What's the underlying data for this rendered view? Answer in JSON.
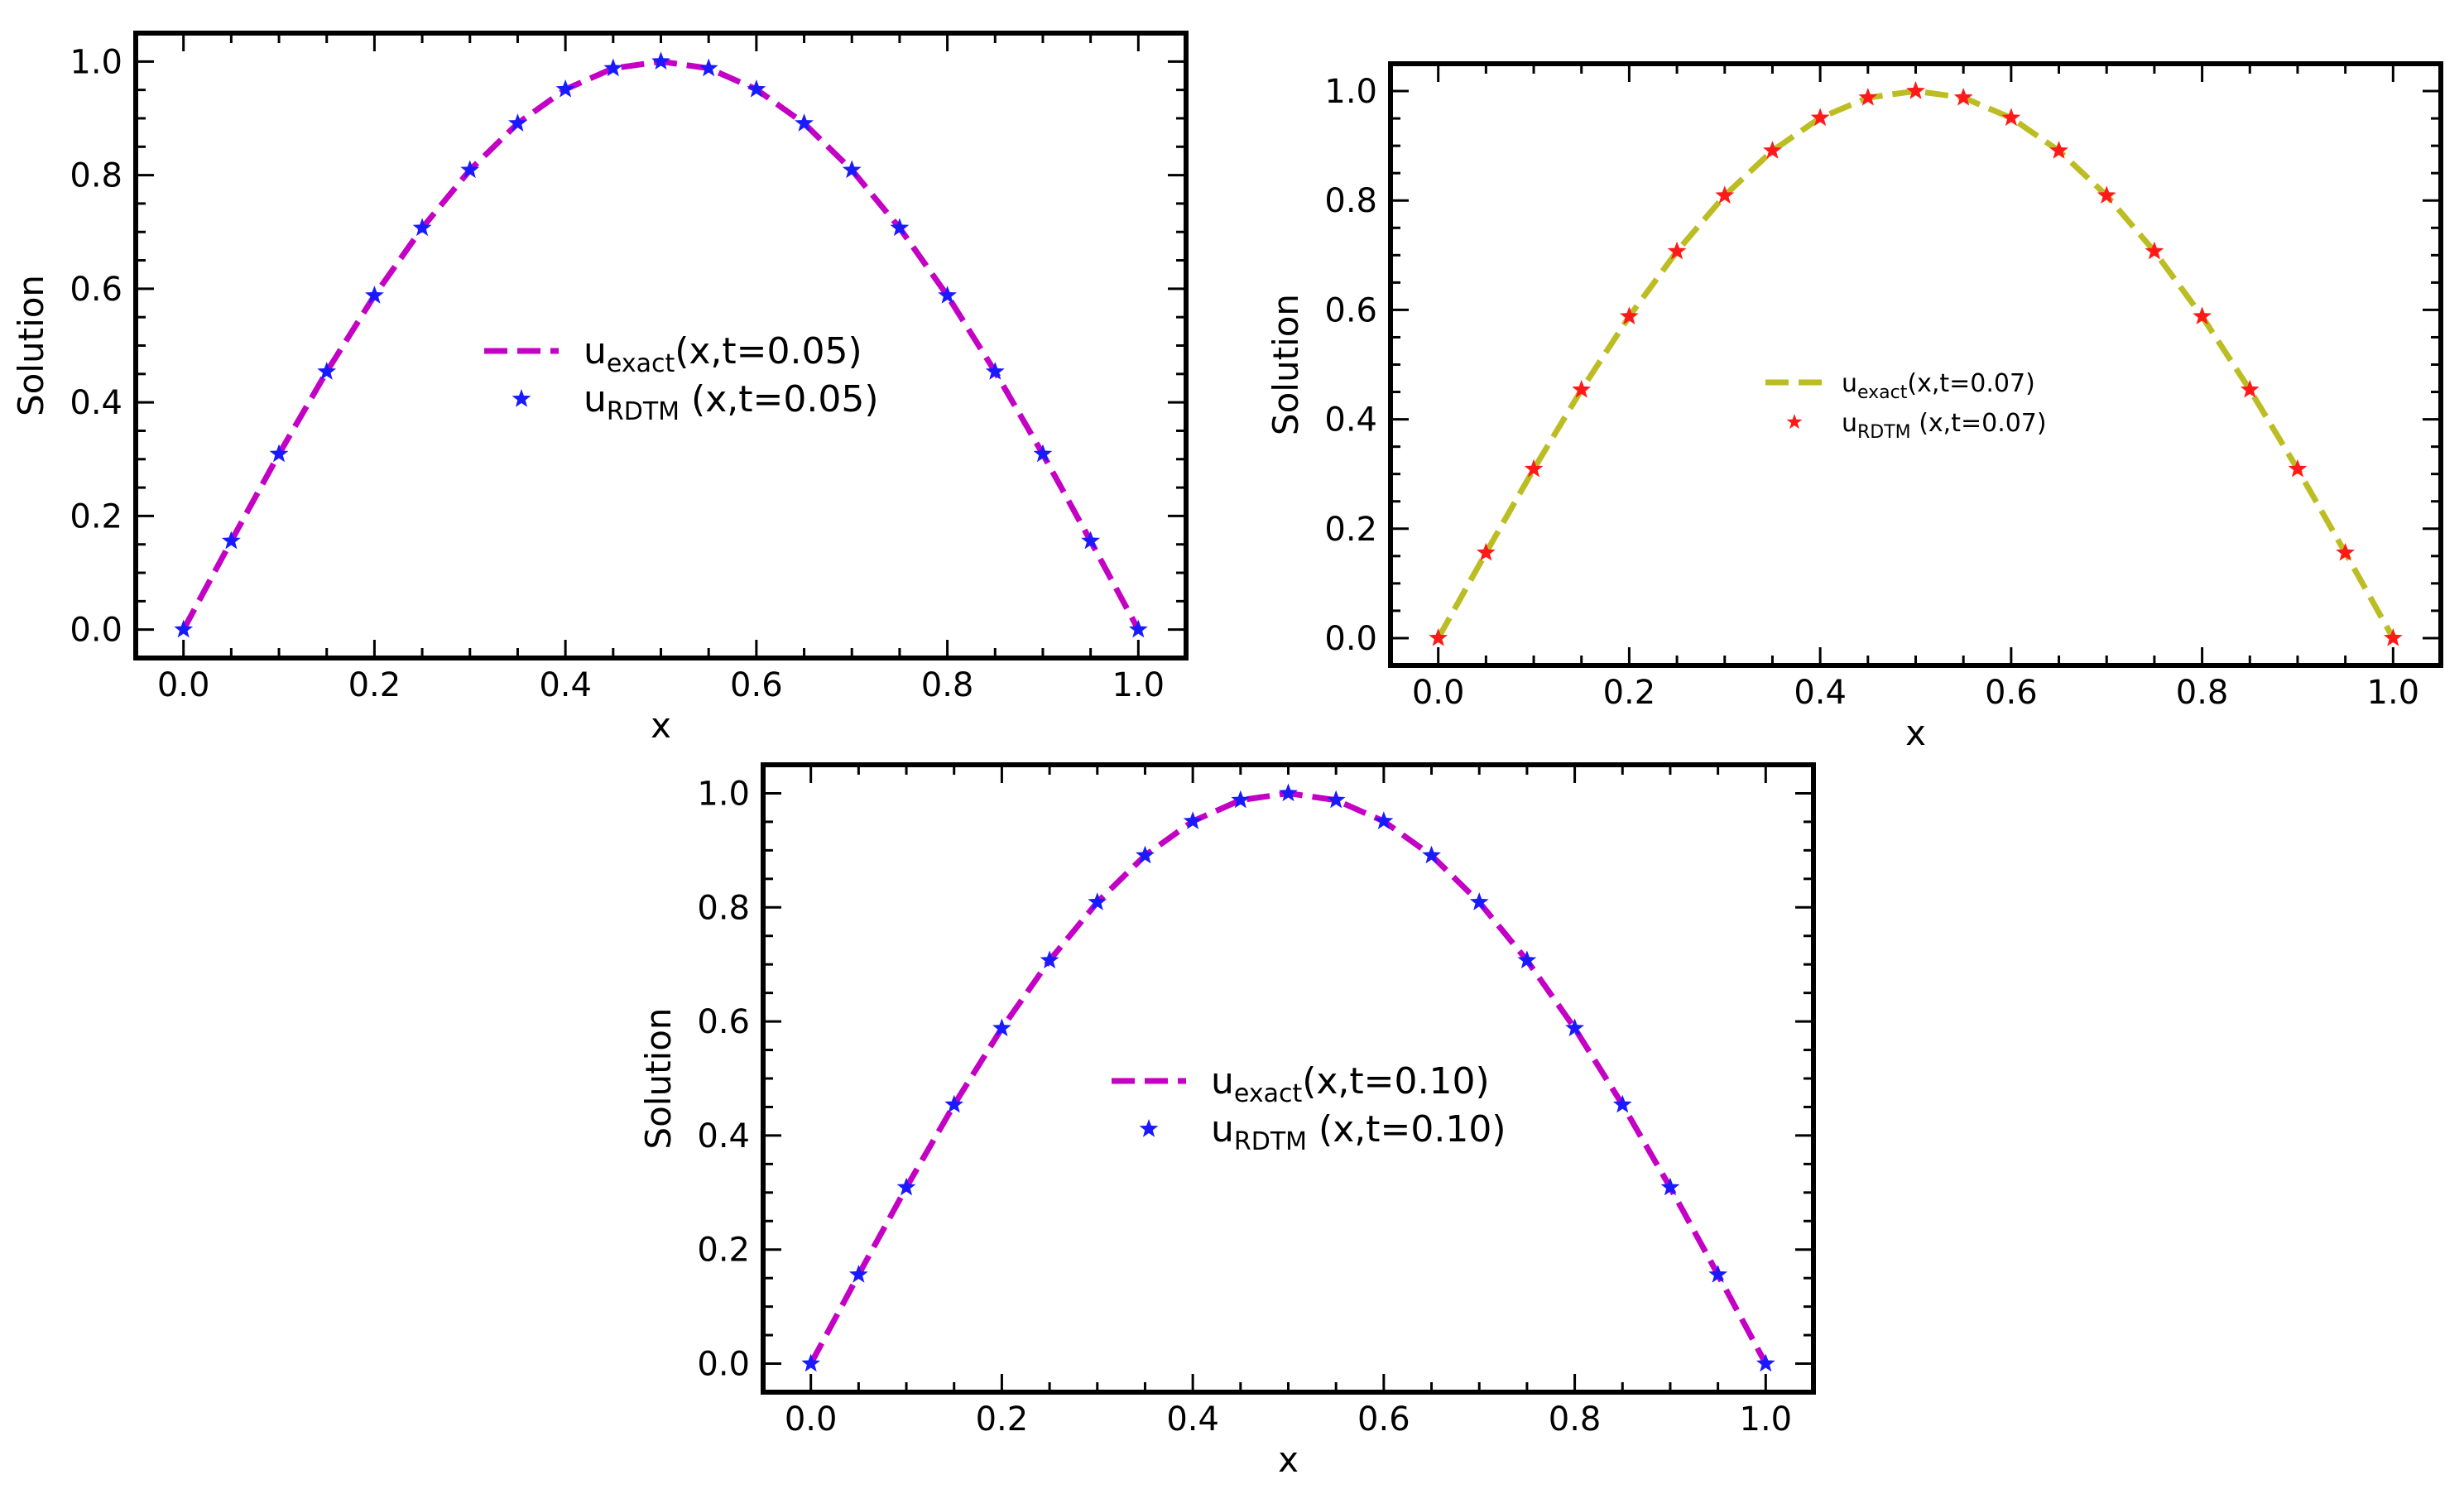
{
  "figure": {
    "background": "#ffffff"
  },
  "chart_data": [
    {
      "type": "line",
      "panel": "top-left",
      "title": "",
      "xlabel": "x",
      "ylabel": "Solution",
      "xlim": [
        -0.05,
        1.05
      ],
      "ylim": [
        -0.05,
        1.05
      ],
      "xticks": [
        "0.0",
        "0.2",
        "0.4",
        "0.6",
        "0.8",
        "1.0"
      ],
      "yticks": [
        "0.0",
        "0.2",
        "0.4",
        "0.6",
        "0.8",
        "1.0"
      ],
      "grid": false,
      "legend_position": "center",
      "legend_size": "large",
      "series": [
        {
          "name": "exact",
          "label_main": "u",
          "label_sub": "exact",
          "label_rest": "(x,t=0.05)",
          "style": "dashed-line",
          "color": "#c400c4",
          "x": [
            0.0,
            0.05,
            0.1,
            0.15,
            0.2,
            0.25,
            0.3,
            0.35,
            0.4,
            0.45,
            0.5,
            0.55,
            0.6,
            0.65,
            0.7,
            0.75,
            0.8,
            0.85,
            0.9,
            0.95,
            1.0
          ],
          "values": [
            0.0,
            0.156,
            0.309,
            0.454,
            0.588,
            0.707,
            0.809,
            0.891,
            0.951,
            0.988,
            1.0,
            0.988,
            0.951,
            0.891,
            0.809,
            0.707,
            0.588,
            0.454,
            0.309,
            0.156,
            0.0
          ]
        },
        {
          "name": "RDTM",
          "label_main": "u",
          "label_sub": "RDTM",
          "label_rest": " (x,t=0.05)",
          "style": "star-markers",
          "color": "#1a1aff",
          "x": [
            0.0,
            0.05,
            0.1,
            0.15,
            0.2,
            0.25,
            0.3,
            0.35,
            0.4,
            0.45,
            0.5,
            0.55,
            0.6,
            0.65,
            0.7,
            0.75,
            0.8,
            0.85,
            0.9,
            0.95,
            1.0
          ],
          "values": [
            0.0,
            0.156,
            0.309,
            0.454,
            0.588,
            0.707,
            0.809,
            0.891,
            0.951,
            0.988,
            1.0,
            0.988,
            0.951,
            0.891,
            0.809,
            0.707,
            0.588,
            0.454,
            0.309,
            0.156,
            0.0
          ]
        }
      ]
    },
    {
      "type": "line",
      "panel": "top-right",
      "title": "",
      "xlabel": "x",
      "ylabel": "Solution",
      "xlim": [
        -0.05,
        1.05
      ],
      "ylim": [
        -0.05,
        1.05
      ],
      "xticks": [
        "0.0",
        "0.2",
        "0.4",
        "0.6",
        "0.8",
        "1.0"
      ],
      "yticks": [
        "0.0",
        "0.2",
        "0.4",
        "0.6",
        "0.8",
        "1.0"
      ],
      "grid": false,
      "legend_position": "center",
      "legend_size": "small",
      "series": [
        {
          "name": "exact",
          "label_main": "u",
          "label_sub": "exact",
          "label_rest": "(x,t=0.07)",
          "style": "dashed-line",
          "color": "#bcbd22",
          "x": [
            0.0,
            0.05,
            0.1,
            0.15,
            0.2,
            0.25,
            0.3,
            0.35,
            0.4,
            0.45,
            0.5,
            0.55,
            0.6,
            0.65,
            0.7,
            0.75,
            0.8,
            0.85,
            0.9,
            0.95,
            1.0
          ],
          "values": [
            0.0,
            0.156,
            0.309,
            0.454,
            0.588,
            0.707,
            0.809,
            0.891,
            0.951,
            0.988,
            1.0,
            0.988,
            0.951,
            0.891,
            0.809,
            0.707,
            0.588,
            0.454,
            0.309,
            0.156,
            0.0
          ]
        },
        {
          "name": "RDTM",
          "label_main": "u",
          "label_sub": "RDTM",
          "label_rest": " (x,t=0.07)",
          "style": "star-markers",
          "color": "#ff1a1a",
          "x": [
            0.0,
            0.05,
            0.1,
            0.15,
            0.2,
            0.25,
            0.3,
            0.35,
            0.4,
            0.45,
            0.5,
            0.55,
            0.6,
            0.65,
            0.7,
            0.75,
            0.8,
            0.85,
            0.9,
            0.95,
            1.0
          ],
          "values": [
            0.0,
            0.156,
            0.309,
            0.454,
            0.588,
            0.707,
            0.809,
            0.891,
            0.951,
            0.988,
            1.0,
            0.988,
            0.951,
            0.891,
            0.809,
            0.707,
            0.588,
            0.454,
            0.309,
            0.156,
            0.0
          ]
        }
      ]
    },
    {
      "type": "line",
      "panel": "bottom-center",
      "title": "",
      "xlabel": "x",
      "ylabel": "Solution",
      "xlim": [
        -0.05,
        1.05
      ],
      "ylim": [
        -0.05,
        1.05
      ],
      "xticks": [
        "0.0",
        "0.2",
        "0.4",
        "0.6",
        "0.8",
        "1.0"
      ],
      "yticks": [
        "0.0",
        "0.2",
        "0.4",
        "0.6",
        "0.8",
        "1.0"
      ],
      "grid": false,
      "legend_position": "center",
      "legend_size": "large",
      "series": [
        {
          "name": "exact",
          "label_main": "u",
          "label_sub": "exact",
          "label_rest": "(x,t=0.10)",
          "style": "dashed-line",
          "color": "#c400c4",
          "x": [
            0.0,
            0.05,
            0.1,
            0.15,
            0.2,
            0.25,
            0.3,
            0.35,
            0.4,
            0.45,
            0.5,
            0.55,
            0.6,
            0.65,
            0.7,
            0.75,
            0.8,
            0.85,
            0.9,
            0.95,
            1.0
          ],
          "values": [
            0.0,
            0.156,
            0.309,
            0.454,
            0.588,
            0.707,
            0.809,
            0.891,
            0.951,
            0.988,
            1.0,
            0.988,
            0.951,
            0.891,
            0.809,
            0.707,
            0.588,
            0.454,
            0.309,
            0.156,
            0.0
          ]
        },
        {
          "name": "RDTM",
          "label_main": "u",
          "label_sub": "RDTM",
          "label_rest": " (x,t=0.10)",
          "style": "star-markers",
          "color": "#1a1aff",
          "x": [
            0.0,
            0.05,
            0.1,
            0.15,
            0.2,
            0.25,
            0.3,
            0.35,
            0.4,
            0.45,
            0.5,
            0.55,
            0.6,
            0.65,
            0.7,
            0.75,
            0.8,
            0.85,
            0.9,
            0.95,
            1.0
          ],
          "values": [
            0.0,
            0.156,
            0.309,
            0.454,
            0.588,
            0.707,
            0.809,
            0.891,
            0.951,
            0.988,
            1.0,
            0.988,
            0.951,
            0.891,
            0.809,
            0.707,
            0.588,
            0.454,
            0.309,
            0.156,
            0.0
          ]
        }
      ]
    }
  ]
}
